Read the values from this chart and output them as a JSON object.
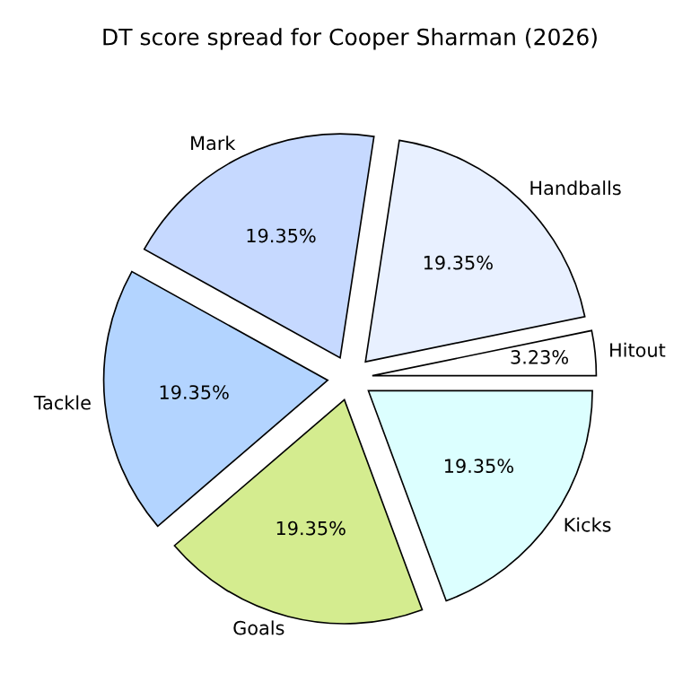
{
  "chart_data": {
    "type": "pie",
    "title": "DT score spread for Cooper Sharman (2026)",
    "categories": [
      "Hitout",
      "Handballs",
      "Mark",
      "Tackle",
      "Goals",
      "Kicks"
    ],
    "values": [
      3.23,
      19.35,
      19.35,
      19.35,
      19.35,
      19.35
    ],
    "colors": [
      "#ffffff",
      "#e8f0ff",
      "#c6d9ff",
      "#b3d4ff",
      "#d4ec8f",
      "#dcffff"
    ],
    "value_labels": [
      "3.23%",
      "19.35%",
      "19.35%",
      "19.35%",
      "19.35%",
      "19.35%"
    ]
  }
}
